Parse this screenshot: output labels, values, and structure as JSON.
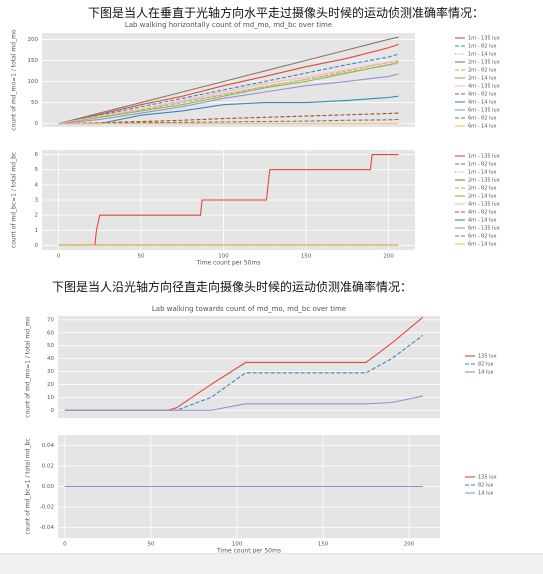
{
  "headings": [
    "下图是当人在垂直于光轴方向水平走过摄像头时候的运动侦测准确率情况：",
    "下图是当人沿光轴方向径直走向摄像头时候的运动侦测准确率情况："
  ],
  "chart_data": [
    {
      "type": "line",
      "title": "Lab walking horizontally count of md_mo, md_bc over time",
      "ylabel": "count of md_mo=1 / total md_mo",
      "x": [
        0,
        25,
        50,
        75,
        100,
        125,
        150,
        175,
        200,
        206
      ],
      "xlim": [
        -10,
        216
      ],
      "ylim": [
        -8,
        215
      ],
      "yticks": [
        0,
        50,
        100,
        150,
        200
      ],
      "grid": true,
      "legend": "right",
      "series": [
        {
          "name": "1m - 135 lux",
          "color": "#e24a33",
          "linestyle": "solid",
          "values": [
            0,
            22,
            45,
            65,
            90,
            112,
            135,
            155,
            180,
            188
          ]
        },
        {
          "name": "1m - 82 lux",
          "color": "#348abd",
          "linestyle": "dashed",
          "values": [
            0,
            20,
            40,
            60,
            80,
            100,
            120,
            140,
            158,
            165
          ]
        },
        {
          "name": "1m - 14 lux",
          "color": "#988ed5",
          "linestyle": "dotted",
          "values": [
            0,
            18,
            35,
            52,
            70,
            88,
            105,
            122,
            138,
            142
          ]
        },
        {
          "name": "2m - 135 lux",
          "color": "#8b7767",
          "linestyle": "solid",
          "values": [
            0,
            25,
            50,
            75,
            100,
            125,
            150,
            175,
            200,
            205
          ]
        },
        {
          "name": "2m - 82 lux",
          "color": "#c9b640",
          "linestyle": "dashed",
          "values": [
            0,
            15,
            32,
            50,
            68,
            88,
            105,
            125,
            145,
            148
          ]
        },
        {
          "name": "2m - 14 lux",
          "color": "#8eba42",
          "linestyle": "solid",
          "values": [
            0,
            15,
            30,
            45,
            65,
            85,
            100,
            120,
            140,
            145
          ]
        },
        {
          "name": "4m - 135 lux",
          "color": "#ffb5b8",
          "linestyle": "solid",
          "values": [
            0,
            18,
            35,
            55,
            75,
            95,
            110,
            128,
            146,
            150
          ]
        },
        {
          "name": "4m - 82 lux",
          "color": "#a0522d",
          "linestyle": "dashed",
          "values": [
            0,
            2,
            5,
            8,
            12,
            15,
            18,
            21,
            24,
            25
          ]
        },
        {
          "name": "4m - 14 lux",
          "color": "#348abd",
          "linestyle": "solid",
          "values": [
            0,
            0,
            20,
            30,
            45,
            50,
            50,
            55,
            62,
            65
          ]
        },
        {
          "name": "6m - 135 lux",
          "color": "#988ed5",
          "linestyle": "solid",
          "values": [
            0,
            10,
            25,
            40,
            60,
            75,
            90,
            100,
            112,
            118
          ]
        },
        {
          "name": "6m - 82 lux",
          "color": "#777777",
          "linestyle": "dashed",
          "values": [
            0,
            1,
            2,
            3,
            4,
            5,
            6,
            8,
            9,
            10
          ]
        },
        {
          "name": "6m - 14 lux",
          "color": "#fbc15e",
          "linestyle": "solid",
          "values": [
            0,
            0,
            0,
            0,
            0,
            0,
            0,
            0,
            0,
            0
          ]
        }
      ]
    },
    {
      "type": "line",
      "ylabel": "count of md_bc=1 / total md_bc",
      "xlabel": "Time count per 50ms",
      "x": [
        0,
        22,
        23,
        25,
        86,
        87,
        126,
        127,
        128,
        189,
        190,
        206
      ],
      "xlim": [
        -10,
        216
      ],
      "ylim": [
        -0.3,
        6.3
      ],
      "yticks": [
        0,
        1,
        2,
        3,
        4,
        5,
        6
      ],
      "xticks": [
        0,
        50,
        100,
        150,
        200
      ],
      "grid": true,
      "legend": "right",
      "series": [
        {
          "name": "1m - 135 lux",
          "color": "#e24a33",
          "linestyle": "solid",
          "values": [
            0,
            0,
            1,
            2,
            2,
            3,
            3,
            4,
            5,
            5,
            6,
            6
          ]
        },
        {
          "name": "1m - 82 lux",
          "color": "#348abd",
          "linestyle": "dashed",
          "values": [
            0,
            0,
            0,
            0,
            0,
            0,
            0,
            0,
            0,
            0,
            0,
            0
          ]
        },
        {
          "name": "1m - 14 lux",
          "color": "#988ed5",
          "linestyle": "dotted",
          "values": [
            0,
            0,
            0,
            0,
            0,
            0,
            0,
            0,
            0,
            0,
            0,
            0
          ]
        },
        {
          "name": "2m - 135 lux",
          "color": "#8b7767",
          "linestyle": "solid",
          "values": [
            0,
            0,
            0,
            0,
            0,
            0,
            0,
            0,
            0,
            0,
            0,
            0
          ]
        },
        {
          "name": "2m - 82 lux",
          "color": "#c9b640",
          "linestyle": "dashed",
          "values": [
            0,
            0,
            0,
            0,
            0,
            0,
            0,
            0,
            0,
            0,
            0,
            0
          ]
        },
        {
          "name": "2m - 14 lux",
          "color": "#8eba42",
          "linestyle": "solid",
          "values": [
            0,
            0,
            0,
            0,
            0,
            0,
            0,
            0,
            0,
            0,
            0,
            0
          ]
        },
        {
          "name": "4m - 135 lux",
          "color": "#ffb5b8",
          "linestyle": "solid",
          "values": [
            0,
            0,
            0,
            0,
            0,
            0,
            0,
            0,
            0,
            0,
            0,
            0
          ]
        },
        {
          "name": "4m - 82 lux",
          "color": "#a0522d",
          "linestyle": "dashed",
          "values": [
            0,
            0,
            0,
            0,
            0,
            0,
            0,
            0,
            0,
            0,
            0,
            0
          ]
        },
        {
          "name": "4m - 14 lux",
          "color": "#348abd",
          "linestyle": "solid",
          "values": [
            0,
            0,
            0,
            0,
            0,
            0,
            0,
            0,
            0,
            0,
            0,
            0
          ]
        },
        {
          "name": "6m - 135 lux",
          "color": "#988ed5",
          "linestyle": "solid",
          "values": [
            0,
            0,
            0,
            0,
            0,
            0,
            0,
            0,
            0,
            0,
            0,
            0
          ]
        },
        {
          "name": "6m - 82 lux",
          "color": "#777777",
          "linestyle": "dashed",
          "values": [
            0,
            0,
            0,
            0,
            0,
            0,
            0,
            0,
            0,
            0,
            0,
            0
          ]
        },
        {
          "name": "6m - 14 lux",
          "color": "#fbc15e",
          "linestyle": "solid",
          "values": [
            0,
            0,
            0,
            0,
            0,
            0,
            0,
            0,
            0,
            0,
            0,
            0
          ]
        }
      ]
    },
    {
      "type": "line",
      "title": "Lab walking towards count of md_mo, md_bc over time",
      "ylabel": "count of md_mo=1 / total md_mo",
      "x": [
        0,
        60,
        65,
        85,
        105,
        130,
        155,
        175,
        190,
        208
      ],
      "xlim": [
        -4,
        218
      ],
      "ylim": [
        -6,
        73
      ],
      "yticks": [
        0,
        10,
        20,
        30,
        40,
        50,
        60,
        70
      ],
      "grid": true,
      "legend": "right",
      "series": [
        {
          "name": "135 lux",
          "color": "#e24a33",
          "linestyle": "solid",
          "values": [
            0,
            0,
            2,
            20,
            37,
            37,
            37,
            37,
            52,
            72
          ]
        },
        {
          "name": "82 lux",
          "color": "#348abd",
          "linestyle": "dashed",
          "values": [
            0,
            0,
            0,
            10,
            29,
            29,
            29,
            29,
            40,
            58
          ]
        },
        {
          "name": "14 lux",
          "color": "#988ed5",
          "linestyle": "solid",
          "values": [
            0,
            0,
            0,
            0,
            5,
            5,
            5,
            5,
            6,
            11
          ]
        }
      ]
    },
    {
      "type": "line",
      "ylabel": "count of md_bc=1 / total md_bc",
      "xlabel": "Time count per 50ms",
      "x": [
        0,
        208
      ],
      "xlim": [
        -4,
        218
      ],
      "ylim": [
        -0.05,
        0.05
      ],
      "yticks": [
        0.04,
        0.02,
        {
          "value": 0,
          "label": "0.00"
        },
        -0.02,
        -0.04
      ],
      "xticks": [
        0,
        50,
        100,
        150,
        200
      ],
      "grid": true,
      "legend": "right",
      "series": [
        {
          "name": "135 lux",
          "color": "#e24a33",
          "linestyle": "solid",
          "values": [
            0,
            0
          ]
        },
        {
          "name": "82 lux",
          "color": "#348abd",
          "linestyle": "dashed",
          "values": [
            0,
            0
          ]
        },
        {
          "name": "14 lux",
          "color": "#988ed5",
          "linestyle": "solid",
          "values": [
            0,
            0
          ]
        }
      ]
    }
  ]
}
